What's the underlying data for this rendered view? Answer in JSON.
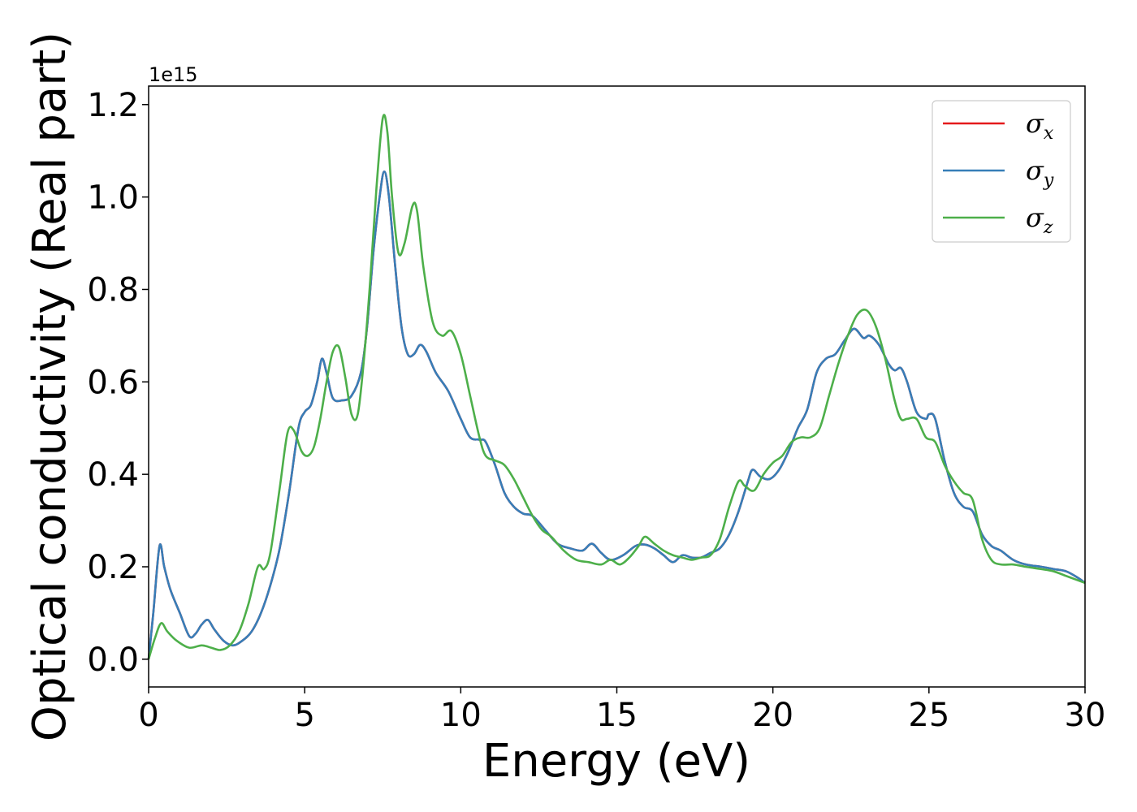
{
  "chart_data": {
    "type": "line",
    "title": "",
    "xlabel": "Energy (eV)",
    "ylabel": "Optical conductivity (Real part)",
    "y_offset_label": "1e15",
    "xlim": [
      0,
      30
    ],
    "ylim": [
      -0.06,
      1.24
    ],
    "x_ticks": [
      0,
      5,
      10,
      15,
      20,
      25,
      30
    ],
    "x_tick_labels": [
      "0",
      "5",
      "10",
      "15",
      "20",
      "25",
      "30"
    ],
    "y_ticks": [
      0.0,
      0.2,
      0.4,
      0.6,
      0.8,
      1.0,
      1.2
    ],
    "y_tick_labels": [
      "0.0",
      "0.2",
      "0.4",
      "0.6",
      "0.8",
      "1.0",
      "1.2"
    ],
    "grid": false,
    "legend_position": "top-right",
    "series": [
      {
        "name": "σx",
        "symbol": "σ",
        "subscript": "x",
        "color": "#e41a1c",
        "x": [
          0,
          0.15,
          0.35,
          0.5,
          0.7,
          1.0,
          1.3,
          1.5,
          1.7,
          1.9,
          2.1,
          2.4,
          2.7,
          3.0,
          3.3,
          3.6,
          3.9,
          4.2,
          4.5,
          4.8,
          5.0,
          5.2,
          5.4,
          5.55,
          5.7,
          5.9,
          6.2,
          6.5,
          6.8,
          7.0,
          7.2,
          7.4,
          7.55,
          7.7,
          7.9,
          8.1,
          8.3,
          8.5,
          8.7,
          8.9,
          9.2,
          9.6,
          10.0,
          10.3,
          10.6,
          10.8,
          11.1,
          11.4,
          11.7,
          12.0,
          12.3,
          12.7,
          13.1,
          13.5,
          13.9,
          14.2,
          14.5,
          14.8,
          15.2,
          15.6,
          15.9,
          16.2,
          16.5,
          16.8,
          17.1,
          17.4,
          17.7,
          18.0,
          18.3,
          18.6,
          18.9,
          19.2,
          19.35,
          19.6,
          19.9,
          20.2,
          20.5,
          20.8,
          21.1,
          21.4,
          21.7,
          22.0,
          22.3,
          22.6,
          22.9,
          23.1,
          23.4,
          23.7,
          23.9,
          24.1,
          24.3,
          24.6,
          24.9,
          25.0,
          25.2,
          25.5,
          25.8,
          26.1,
          26.4,
          26.7,
          27.0,
          27.3,
          27.7,
          28.1,
          28.6,
          29.0,
          29.4,
          29.8,
          30.0
        ],
        "values": [
          0.0,
          0.1,
          0.245,
          0.2,
          0.15,
          0.1,
          0.05,
          0.055,
          0.075,
          0.085,
          0.065,
          0.04,
          0.03,
          0.04,
          0.06,
          0.1,
          0.16,
          0.24,
          0.36,
          0.5,
          0.535,
          0.55,
          0.6,
          0.65,
          0.62,
          0.565,
          0.56,
          0.57,
          0.62,
          0.72,
          0.88,
          1.0,
          1.055,
          1.0,
          0.85,
          0.72,
          0.66,
          0.66,
          0.68,
          0.665,
          0.62,
          0.58,
          0.52,
          0.48,
          0.475,
          0.47,
          0.42,
          0.36,
          0.33,
          0.315,
          0.31,
          0.28,
          0.25,
          0.24,
          0.235,
          0.25,
          0.23,
          0.215,
          0.225,
          0.245,
          0.248,
          0.24,
          0.225,
          0.21,
          0.225,
          0.22,
          0.22,
          0.23,
          0.24,
          0.27,
          0.32,
          0.385,
          0.41,
          0.395,
          0.39,
          0.41,
          0.45,
          0.5,
          0.54,
          0.62,
          0.65,
          0.66,
          0.69,
          0.715,
          0.695,
          0.7,
          0.68,
          0.64,
          0.625,
          0.63,
          0.6,
          0.535,
          0.52,
          0.53,
          0.52,
          0.43,
          0.36,
          0.33,
          0.32,
          0.27,
          0.245,
          0.235,
          0.215,
          0.205,
          0.2,
          0.195,
          0.19,
          0.175,
          0.165
        ]
      },
      {
        "name": "σy",
        "symbol": "σ",
        "subscript": "y",
        "color": "#377eb8",
        "x": [
          0,
          0.15,
          0.35,
          0.5,
          0.7,
          1.0,
          1.3,
          1.5,
          1.7,
          1.9,
          2.1,
          2.4,
          2.7,
          3.0,
          3.3,
          3.6,
          3.9,
          4.2,
          4.5,
          4.8,
          5.0,
          5.2,
          5.4,
          5.55,
          5.7,
          5.9,
          6.2,
          6.5,
          6.8,
          7.0,
          7.2,
          7.4,
          7.55,
          7.7,
          7.9,
          8.1,
          8.3,
          8.5,
          8.7,
          8.9,
          9.2,
          9.6,
          10.0,
          10.3,
          10.6,
          10.8,
          11.1,
          11.4,
          11.7,
          12.0,
          12.3,
          12.7,
          13.1,
          13.5,
          13.9,
          14.2,
          14.5,
          14.8,
          15.2,
          15.6,
          15.9,
          16.2,
          16.5,
          16.8,
          17.1,
          17.4,
          17.7,
          18.0,
          18.3,
          18.6,
          18.9,
          19.2,
          19.35,
          19.6,
          19.9,
          20.2,
          20.5,
          20.8,
          21.1,
          21.4,
          21.7,
          22.0,
          22.3,
          22.6,
          22.9,
          23.1,
          23.4,
          23.7,
          23.9,
          24.1,
          24.3,
          24.6,
          24.9,
          25.0,
          25.2,
          25.5,
          25.8,
          26.1,
          26.4,
          26.7,
          27.0,
          27.3,
          27.7,
          28.1,
          28.6,
          29.0,
          29.4,
          29.8,
          30.0
        ],
        "values": [
          0.0,
          0.1,
          0.245,
          0.2,
          0.15,
          0.1,
          0.05,
          0.055,
          0.075,
          0.085,
          0.065,
          0.04,
          0.03,
          0.04,
          0.06,
          0.1,
          0.16,
          0.24,
          0.36,
          0.5,
          0.535,
          0.55,
          0.6,
          0.65,
          0.62,
          0.565,
          0.56,
          0.57,
          0.62,
          0.72,
          0.88,
          1.0,
          1.055,
          1.0,
          0.85,
          0.72,
          0.66,
          0.66,
          0.68,
          0.665,
          0.62,
          0.58,
          0.52,
          0.48,
          0.475,
          0.47,
          0.42,
          0.36,
          0.33,
          0.315,
          0.31,
          0.28,
          0.25,
          0.24,
          0.235,
          0.25,
          0.23,
          0.215,
          0.225,
          0.245,
          0.248,
          0.24,
          0.225,
          0.21,
          0.225,
          0.22,
          0.22,
          0.23,
          0.24,
          0.27,
          0.32,
          0.385,
          0.41,
          0.395,
          0.39,
          0.41,
          0.45,
          0.5,
          0.54,
          0.62,
          0.65,
          0.66,
          0.69,
          0.715,
          0.695,
          0.7,
          0.68,
          0.64,
          0.625,
          0.63,
          0.6,
          0.535,
          0.52,
          0.53,
          0.52,
          0.43,
          0.36,
          0.33,
          0.32,
          0.27,
          0.245,
          0.235,
          0.215,
          0.205,
          0.2,
          0.195,
          0.19,
          0.175,
          0.165
        ]
      },
      {
        "name": "σz",
        "symbol": "σ",
        "subscript": "z",
        "color": "#4daf4a",
        "x": [
          0,
          0.2,
          0.4,
          0.6,
          0.9,
          1.3,
          1.7,
          2.0,
          2.3,
          2.6,
          2.9,
          3.2,
          3.5,
          3.7,
          3.9,
          4.2,
          4.45,
          4.65,
          4.9,
          5.1,
          5.3,
          5.5,
          5.7,
          5.9,
          6.1,
          6.3,
          6.5,
          6.7,
          6.9,
          7.1,
          7.3,
          7.5,
          7.65,
          7.8,
          8.0,
          8.2,
          8.45,
          8.6,
          8.8,
          9.1,
          9.4,
          9.7,
          10.0,
          10.3,
          10.6,
          10.8,
          11.1,
          11.4,
          11.7,
          12.0,
          12.3,
          12.6,
          12.9,
          13.3,
          13.7,
          14.1,
          14.5,
          14.8,
          15.1,
          15.4,
          15.7,
          15.9,
          16.2,
          16.5,
          16.8,
          17.1,
          17.4,
          17.7,
          18.0,
          18.3,
          18.6,
          18.9,
          19.1,
          19.4,
          19.7,
          20.0,
          20.3,
          20.6,
          20.9,
          21.2,
          21.5,
          21.8,
          22.1,
          22.4,
          22.7,
          23.0,
          23.3,
          23.6,
          23.9,
          24.1,
          24.3,
          24.6,
          24.9,
          25.2,
          25.5,
          25.8,
          26.1,
          26.4,
          26.7,
          27.0,
          27.3,
          27.7,
          28.1,
          28.6,
          29.0,
          29.4,
          29.8,
          30.0
        ],
        "values": [
          0.0,
          0.045,
          0.078,
          0.06,
          0.04,
          0.025,
          0.03,
          0.025,
          0.02,
          0.03,
          0.06,
          0.12,
          0.2,
          0.195,
          0.23,
          0.37,
          0.49,
          0.495,
          0.45,
          0.44,
          0.46,
          0.52,
          0.6,
          0.665,
          0.675,
          0.61,
          0.53,
          0.53,
          0.65,
          0.82,
          1.02,
          1.17,
          1.14,
          1.0,
          0.88,
          0.9,
          0.98,
          0.97,
          0.85,
          0.73,
          0.7,
          0.71,
          0.66,
          0.57,
          0.48,
          0.44,
          0.43,
          0.42,
          0.39,
          0.35,
          0.31,
          0.28,
          0.265,
          0.235,
          0.215,
          0.21,
          0.205,
          0.215,
          0.205,
          0.22,
          0.245,
          0.265,
          0.25,
          0.235,
          0.225,
          0.22,
          0.215,
          0.22,
          0.225,
          0.26,
          0.33,
          0.385,
          0.375,
          0.365,
          0.4,
          0.425,
          0.44,
          0.47,
          0.48,
          0.48,
          0.5,
          0.57,
          0.64,
          0.7,
          0.745,
          0.755,
          0.72,
          0.65,
          0.56,
          0.52,
          0.52,
          0.52,
          0.48,
          0.47,
          0.42,
          0.385,
          0.36,
          0.345,
          0.26,
          0.215,
          0.205,
          0.205,
          0.2,
          0.195,
          0.19,
          0.18,
          0.17,
          0.165
        ]
      }
    ]
  }
}
